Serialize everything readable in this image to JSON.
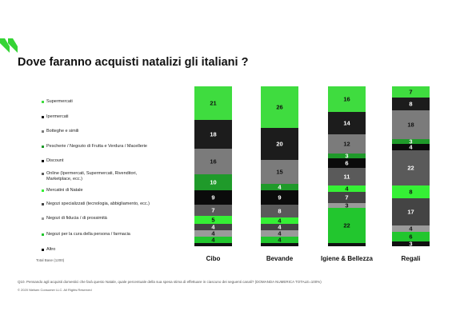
{
  "chart_data": {
    "type": "bar",
    "stacked": true,
    "title": "Dove faranno acquisti natalizi gli italiani ?",
    "base_label": "Total Base (1200)",
    "footnote": "Q10. Pensando agli acquisti domestici che farà questo Natale, quale percentuale della sua spesa stima di effettuare in ciascuno dei seguenti canali? (DOMANDA NUMERICA TOTALE=100%)",
    "copyright": "© 2020 Nielsen Consumer LLC. All Rights Reserved",
    "categories": [
      "Cibo",
      "Bevande",
      "Igiene & Bellezza",
      "Regali"
    ],
    "series": [
      {
        "name": "Supermercati",
        "color": "#3fdc3f",
        "values": [
          21,
          26,
          16,
          7
        ]
      },
      {
        "name": "Ipermercati",
        "color": "#1c1c1c",
        "values": [
          18,
          20,
          14,
          8
        ]
      },
      {
        "name": "Botteghe e simili",
        "color": "#7b7b7b",
        "values": [
          16,
          15,
          12,
          18
        ]
      },
      {
        "name": "Pescherie / Negozio di Frutta e Verdura / Macellerie",
        "color": "#1f9a2a",
        "values": [
          10,
          4,
          3,
          3
        ]
      },
      {
        "name": "Discount",
        "color": "#0b0b0b",
        "values": [
          9,
          9,
          6,
          4
        ]
      },
      {
        "name": "Online (Ipermercati, Supermercati, Rivenditori, Marketplace, ecc.)",
        "color": "#5a5a5a",
        "values": [
          7,
          8,
          11,
          22
        ]
      },
      {
        "name": "Mercatini di Natale",
        "color": "#35f035",
        "values": [
          5,
          4,
          4,
          8
        ]
      },
      {
        "name": "Negozi specializzati (tecnologia, abbigliamento, ecc.)",
        "color": "#444444",
        "values": [
          4,
          4,
          7,
          17
        ]
      },
      {
        "name": "Negozi di fiducia / di prossimità",
        "color": "#9a9a9a",
        "values": [
          4,
          4,
          3,
          4
        ]
      },
      {
        "name": "Negozi per la cura della persona / farmacia",
        "color": "#22c62e",
        "values": [
          4,
          4,
          22,
          6
        ]
      },
      {
        "name": "Altro",
        "color": "#111111",
        "values": [
          2,
          2,
          2,
          3
        ]
      }
    ]
  }
}
